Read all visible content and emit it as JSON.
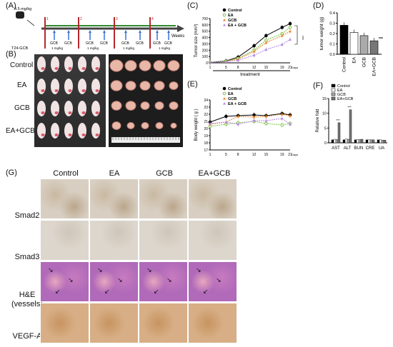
{
  "panels": {
    "A": "(A)",
    "B": "(B)",
    "C": "(C)",
    "D": "(D)",
    "E": "(E)",
    "F": "(F)",
    "G": "(G)"
  },
  "timeline": {
    "dose_top": "4.5 mg/kg",
    "dose_bottom": "T24-GCB",
    "axis": "Weeks",
    "weeks": [
      "1",
      "2",
      "3",
      "4"
    ],
    "labels": [
      "GCB",
      "GCB",
      "GCB",
      "GCB",
      "GCB",
      "GCB",
      "GCB",
      "GCB"
    ],
    "ea_labels": [
      "1 mg/kg",
      "1 mg/kg",
      "1 mg/kg",
      "1 mg/kg"
    ]
  },
  "photo_rows": [
    "Control",
    "EA",
    "GCB",
    "EA+GCB"
  ],
  "g": {
    "cols": [
      "Control",
      "EA",
      "GCB",
      "EA+GCB"
    ],
    "rows": [
      "Smad2",
      "Smad3",
      "H&E\n(vessels)",
      "VEGF-A"
    ]
  },
  "colors": {
    "control": "#000000",
    "ea": "#7cc444",
    "gcb": "#e8842a",
    "eagcb": "#b388e0",
    "timeline": "#2e8b2e",
    "weekline": "#b5282d"
  },
  "chart_data": [
    {
      "id": "C",
      "type": "line",
      "ylabel": "Tumor size (mm³)",
      "xlabel": "treatment",
      "x_unit": "Days",
      "x": [
        1,
        5,
        8,
        12,
        15,
        19,
        21
      ],
      "ylim": [
        0,
        700
      ],
      "yticks": [
        0,
        100,
        200,
        300,
        400,
        500,
        600,
        700
      ],
      "significance": "***",
      "series": [
        {
          "name": "Control",
          "marker": "circle",
          "values": [
            5,
            30,
            90,
            270,
            430,
            560,
            620
          ]
        },
        {
          "name": "EA",
          "marker": "circle-open",
          "values": [
            5,
            25,
            70,
            200,
            360,
            460,
            560
          ]
        },
        {
          "name": "GCB",
          "marker": "triangle",
          "values": [
            5,
            22,
            60,
            180,
            320,
            430,
            500
          ]
        },
        {
          "name": "EA + GCB",
          "marker": "triangle",
          "values": [
            5,
            18,
            40,
            120,
            210,
            290,
            370
          ]
        }
      ]
    },
    {
      "id": "D",
      "type": "bar",
      "ylabel": "tumor weight (g)",
      "categories": [
        "Control",
        "EA",
        "GCB",
        "EA+GCB"
      ],
      "values": [
        0.28,
        0.21,
        0.18,
        0.13
      ],
      "ylim": [
        0,
        0.4
      ],
      "yticks": [
        0.0,
        0.1,
        0.2,
        0.3,
        0.4
      ],
      "significance": "***"
    },
    {
      "id": "E",
      "type": "line",
      "ylabel": "Body weight ( g )",
      "x_unit": "Days",
      "x": [
        1,
        5,
        8,
        12,
        15,
        19,
        21
      ],
      "ylim": [
        17,
        24
      ],
      "yticks": [
        17,
        18,
        19,
        20,
        21,
        22,
        23,
        24
      ],
      "series": [
        {
          "name": "Control",
          "values": [
            20.9,
            21.7,
            21.8,
            21.9,
            21.8,
            22.1,
            21.9
          ]
        },
        {
          "name": "EA",
          "values": [
            20.3,
            20.6,
            20.8,
            21.0,
            20.7,
            20.5,
            20.7
          ]
        },
        {
          "name": "GCB",
          "values": [
            20.6,
            20.9,
            21.7,
            21.6,
            21.7,
            22.0,
            21.8
          ]
        },
        {
          "name": "EA + GCB",
          "values": [
            20.7,
            20.9,
            20.6,
            21.1,
            21.1,
            21.4,
            20.6
          ]
        }
      ]
    },
    {
      "id": "F",
      "type": "bar",
      "ylabel": "Relative fold",
      "categories": [
        "AST",
        "ALT",
        "BUN",
        "CRE",
        "UA"
      ],
      "ylim": [
        0,
        15
      ],
      "yticks": [
        0,
        5,
        10,
        15
      ],
      "significance": "***",
      "series": [
        {
          "name": "Control",
          "values": [
            1,
            1,
            1,
            1,
            1
          ]
        },
        {
          "name": "EA",
          "values": [
            1.2,
            1.3,
            1.1,
            1,
            1
          ]
        },
        {
          "name": "GCB",
          "values": [
            1.1,
            1.2,
            1.1,
            1,
            0.9
          ]
        },
        {
          "name": "EA+GCB",
          "values": [
            6.8,
            11.2,
            1.2,
            1,
            0.9
          ]
        }
      ]
    }
  ]
}
